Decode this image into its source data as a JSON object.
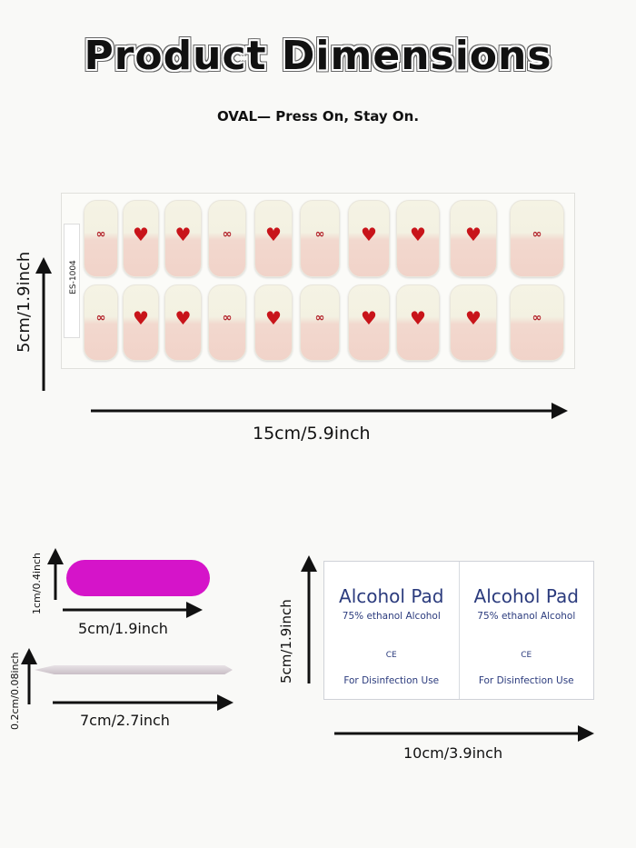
{
  "header": {
    "title": "Product Dimensions",
    "subtitle": "OVAL— Press On, Stay On."
  },
  "nail_sheet": {
    "code": "ES-1004",
    "rows": [
      [
        "bow",
        "heart",
        "heart",
        "bow",
        "heart",
        "bow",
        "heart",
        "heart",
        "heart",
        "bow"
      ],
      [
        "bow",
        "heart",
        "heart",
        "bow",
        "heart",
        "bow",
        "heart",
        "heart",
        "heart",
        "bow"
      ]
    ],
    "height_label": "5cm/1.9inch",
    "width_label": "15cm/5.9inch"
  },
  "nail_file": {
    "height_label": "1cm/0.4inch",
    "width_label": "5cm/1.9inch",
    "color": "#d514c9"
  },
  "cuticle_stick": {
    "height_label": "0.2cm/0.08inch",
    "width_label": "7cm/2.7inch"
  },
  "alcohol_pad": {
    "halves": [
      {
        "title": "Alcohol Pad",
        "subtitle": "75% ethanol Alcohol",
        "mark": "CE",
        "use": "For Disinfection Use"
      },
      {
        "title": "Alcohol Pad",
        "subtitle": "75% ethanol Alcohol",
        "mark": "CE",
        "use": "For Disinfection Use"
      }
    ],
    "height_label": "5cm/1.9inch",
    "width_label": "10cm/3.9inch",
    "text_color": "#2b3b7d"
  },
  "colors": {
    "heart": "#c8141a",
    "background": "#f9f9f7"
  }
}
